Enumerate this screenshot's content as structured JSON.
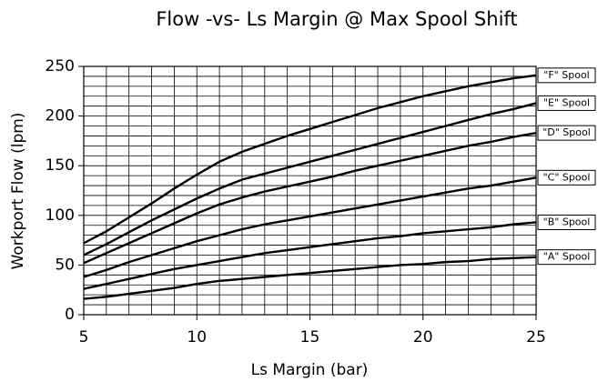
{
  "chart_data": {
    "type": "line",
    "title": "Flow -vs- Ls Margin @ Max Spool Shift",
    "xlabel": "Ls Margin (bar)",
    "ylabel": "Workport Flow (lpm)",
    "x": [
      5,
      6,
      7,
      8,
      9,
      10,
      11,
      12,
      13,
      14,
      15,
      16,
      17,
      18,
      19,
      20,
      21,
      22,
      23,
      24,
      25
    ],
    "series": [
      {
        "name": "\"A\" Spool",
        "color": "#000000",
        "values": [
          16,
          18,
          21,
          24,
          27,
          31,
          34,
          36,
          38,
          40,
          42,
          44,
          46,
          48,
          50,
          51,
          53,
          54,
          56,
          57,
          58
        ]
      },
      {
        "name": "\"B\" Spool",
        "color": "#000000",
        "values": [
          26,
          31,
          36,
          41,
          46,
          50,
          54,
          58,
          62,
          65,
          68,
          71,
          74,
          77,
          79,
          82,
          84,
          86,
          88,
          91,
          93
        ]
      },
      {
        "name": "\"C\" Spool",
        "color": "#000000",
        "values": [
          38,
          45,
          53,
          60,
          67,
          74,
          80,
          86,
          91,
          95,
          99,
          103,
          107,
          111,
          115,
          119,
          123,
          127,
          130,
          134,
          138
        ]
      },
      {
        "name": "\"D\" Spool",
        "color": "#000000",
        "values": [
          52,
          62,
          72,
          82,
          92,
          102,
          111,
          118,
          124,
          129,
          134,
          139,
          145,
          150,
          155,
          160,
          165,
          170,
          174,
          179,
          183
        ]
      },
      {
        "name": "\"E\" Spool",
        "color": "#000000",
        "values": [
          60,
          71,
          83,
          95,
          106,
          117,
          127,
          136,
          142,
          148,
          154,
          160,
          166,
          172,
          178,
          184,
          190,
          196,
          202,
          207,
          213
        ]
      },
      {
        "name": "\"F\" Spool",
        "color": "#000000",
        "values": [
          72,
          84,
          98,
          112,
          127,
          141,
          154,
          164,
          172,
          180,
          187,
          194,
          201,
          208,
          214,
          220,
          225,
          230,
          234,
          238,
          241
        ]
      }
    ],
    "xlim": [
      5,
      25
    ],
    "ylim": [
      0,
      250
    ],
    "xticks": [
      5,
      10,
      15,
      20,
      25
    ],
    "yticks": [
      0,
      50,
      100,
      150,
      200,
      250
    ],
    "grid": {
      "x": 1,
      "y": 10
    }
  }
}
